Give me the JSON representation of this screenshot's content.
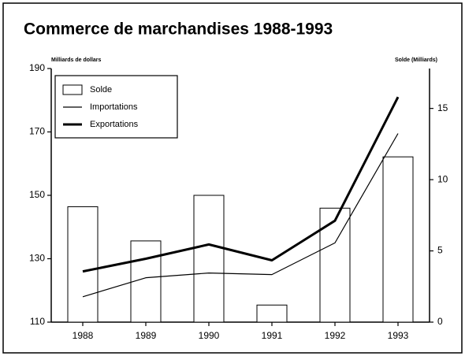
{
  "chart_data": {
    "type": "bar-line",
    "title": "Commerce de marchandises 1988-1993",
    "y_label": "Milliards de dollars",
    "y2_label": "Solde (Milliards)",
    "categories": [
      "1988",
      "1989",
      "1990",
      "1991",
      "1992",
      "1993"
    ],
    "series": [
      {
        "name": "Solde",
        "type": "bar",
        "axis": "y2",
        "color": "#ffffff",
        "values": [
          8.1,
          5.7,
          8.9,
          1.2,
          8.0,
          11.6
        ]
      },
      {
        "name": "Importations",
        "type": "line",
        "color": "#000000",
        "values": [
          118,
          124,
          125.5,
          125,
          135,
          169.5
        ]
      },
      {
        "name": "Exportations",
        "type": "line",
        "color": "#000000",
        "values": [
          126,
          130,
          134.5,
          129.5,
          142,
          181
        ]
      }
    ],
    "ylim": [
      110,
      190
    ],
    "yticks": [
      110,
      130,
      150,
      170,
      190
    ],
    "y2lim": [
      0,
      17.8
    ],
    "y2ticks": [
      0,
      5,
      10,
      15
    ],
    "legend": "upper left"
  }
}
